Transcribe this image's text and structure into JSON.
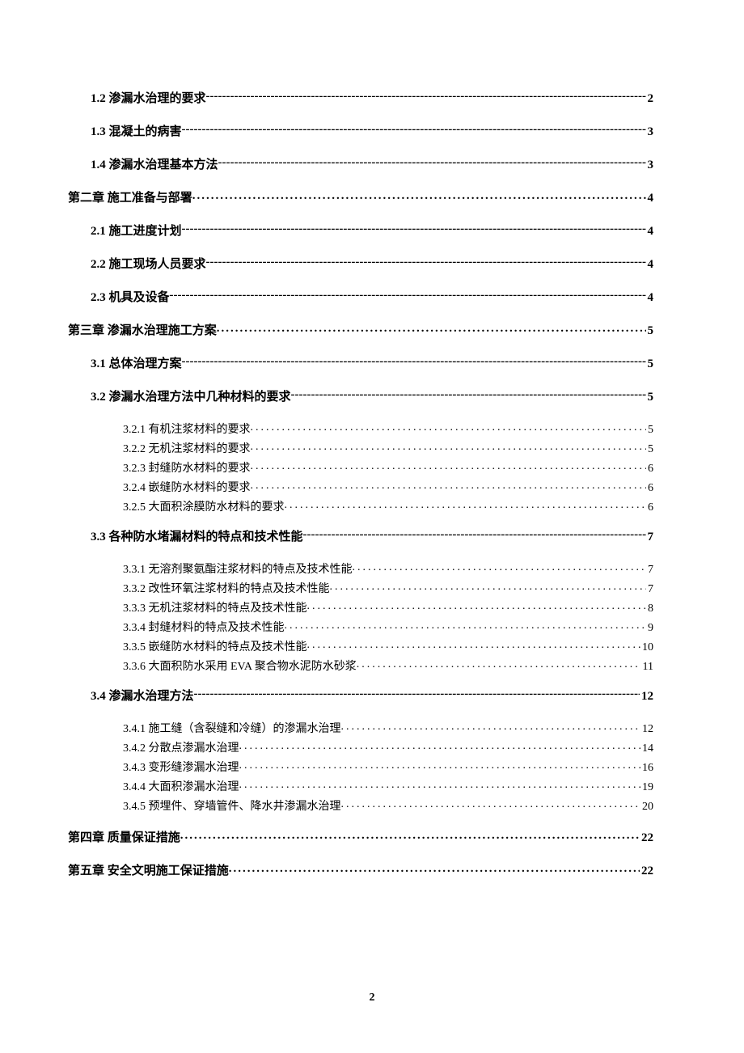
{
  "toc": {
    "items": [
      {
        "level": 1,
        "label": "1.2 渗漏水治理的要求",
        "page": "2",
        "leader": "dash"
      },
      {
        "level": 1,
        "label": "1.3 混凝土的病害",
        "page": "3",
        "leader": "dash"
      },
      {
        "level": 1,
        "label": "1.4 渗漏水治理基本方法",
        "page": "3",
        "leader": "dash"
      },
      {
        "level": 0,
        "label": "第二章  施工准备与部署",
        "page": "4",
        "leader": "dotbold"
      },
      {
        "level": 1,
        "label": "2.1 施工进度计划",
        "page": "4",
        "leader": "dash"
      },
      {
        "level": 1,
        "label": "2.2 施工现场人员要求",
        "page": "4",
        "leader": "dash"
      },
      {
        "level": 1,
        "label": "2.3 机具及设备",
        "page": "4",
        "leader": "dash"
      },
      {
        "level": 0,
        "label": "第三章  渗漏水治理施工方案",
        "page": "5",
        "leader": "dotbold"
      },
      {
        "level": 1,
        "label": "3.1 总体治理方案",
        "page": "5",
        "leader": "dash"
      },
      {
        "level": 1,
        "label": "3.2 渗漏水治理方法中几种材料的要求",
        "page": "5",
        "leader": "dash"
      },
      {
        "level": 2,
        "label": "3.2.1 有机注浆材料的要求",
        "page": "5",
        "leader": "dot",
        "groupStart": true
      },
      {
        "level": 2,
        "label": "3.2.2 无机注浆材料的要求",
        "page": "5",
        "leader": "dot"
      },
      {
        "level": 2,
        "label": "3.2.3 封缝防水材料的要求",
        "page": "6",
        "leader": "dot"
      },
      {
        "level": 2,
        "label": "3.2.4 嵌缝防水材料的要求",
        "page": "6",
        "leader": "dot"
      },
      {
        "level": 2,
        "label": "3.2.5 大面积涂膜防水材料的要求",
        "page": "6",
        "leader": "dot",
        "groupEnd": true
      },
      {
        "level": 1,
        "label": "3.3 各种防水堵漏材料的特点和技术性能",
        "page": "7",
        "leader": "dash"
      },
      {
        "level": 2,
        "label": "3.3.1 无溶剂聚氨酯注浆材料的特点及技术性能",
        "page": "7",
        "leader": "dot",
        "groupStart": true
      },
      {
        "level": 2,
        "label": "3.3.2 改性环氧注浆材料的特点及技术性能",
        "page": "7",
        "leader": "dot"
      },
      {
        "level": 2,
        "label": "3.3.3 无机注浆材料的特点及技术性能",
        "page": "8",
        "leader": "dot"
      },
      {
        "level": 2,
        "label": "3.3.4 封缝材料的特点及技术性能",
        "page": "9",
        "leader": "dot"
      },
      {
        "level": 2,
        "label": "3.3.5 嵌缝防水材料的特点及技术性能",
        "page": "10",
        "leader": "dot"
      },
      {
        "level": 2,
        "label": "3.3.6 大面积防水采用 EVA 聚合物水泥防水砂浆",
        "page": "11",
        "leader": "dot",
        "trailingSpace": true,
        "groupEnd": true
      },
      {
        "level": 1,
        "label": "3.4 渗漏水治理方法 ",
        "page": "12",
        "leader": "dash"
      },
      {
        "level": 2,
        "label": "3.4.1 施工缝（含裂缝和冷缝）的渗漏水治理",
        "page": "12",
        "leader": "dot",
        "groupStart": true
      },
      {
        "level": 2,
        "label": "3.4.2 分散点渗漏水治理",
        "page": "14",
        "leader": "dot"
      },
      {
        "level": 2,
        "label": "3.4.3 变形缝渗漏水治理",
        "page": "16",
        "leader": "dot"
      },
      {
        "level": 2,
        "label": "3.4.4 大面积渗漏水治理",
        "page": "19",
        "leader": "dot"
      },
      {
        "level": 2,
        "label": "3.4.5 预埋件、穿墙管件、降水井渗漏水治理",
        "page": "20",
        "leader": "dot",
        "groupEnd": true
      },
      {
        "level": 0,
        "label": "第四章  质量保证措施",
        "page": "22",
        "leader": "dotbold"
      },
      {
        "level": 0,
        "label": "第五章  安全文明施工保证措施",
        "page": "22",
        "leader": "dotbold"
      }
    ]
  },
  "pageNumber": "2",
  "colors": {
    "text": "#000000",
    "background": "#ffffff"
  },
  "typography": {
    "level0_fontsize": 15,
    "level1_fontsize": 15,
    "level2_fontsize": 14,
    "font_family": "SimSun"
  }
}
